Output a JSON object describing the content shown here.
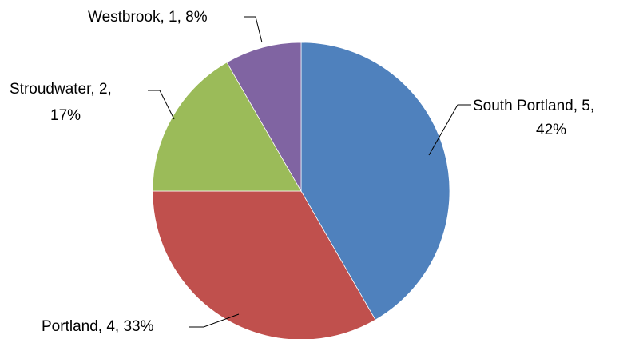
{
  "chart_data": {
    "type": "pie",
    "title": "",
    "slices": [
      {
        "name": "South Portland",
        "value": 5,
        "percent": "42%",
        "color": "#4F81BD",
        "label_lines": [
          "South Portland, 5,",
          "42%"
        ]
      },
      {
        "name": "Portland",
        "value": 4,
        "percent": "33%",
        "color": "#C0504D",
        "label_lines": [
          "Portland, 4, 33%"
        ]
      },
      {
        "name": "Stroudwater",
        "value": 2,
        "percent": "17%",
        "color": "#9BBB59",
        "label_lines": [
          "Stroudwater, 2,",
          "17%"
        ]
      },
      {
        "name": "Westbrook",
        "value": 1,
        "percent": "8%",
        "color": "#8064A2",
        "label_lines": [
          "Westbrook, 1, 8%"
        ]
      }
    ],
    "start_angle": "12 o'clock",
    "direction": "clockwise",
    "legend": "none"
  }
}
